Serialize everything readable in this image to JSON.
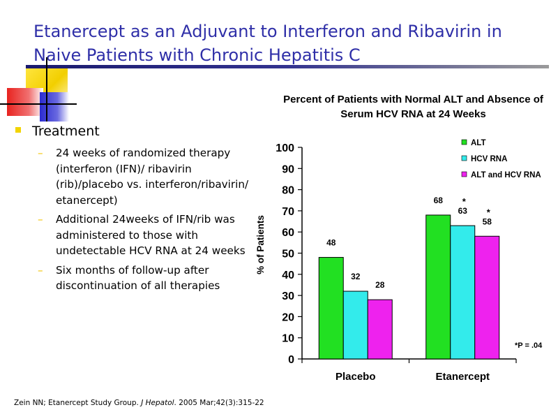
{
  "slide": {
    "title": "Etanercept as an Adjuvant to Interferon and Ribavirin in Naive Patients with Chronic Hepatitis C",
    "bullet_heading": "Treatment",
    "sub_bullets": [
      "24 weeks of randomized therapy (interferon (IFN)/ ribavirin (rib)/placebo vs. interferon/ribavirin/ etanercept)",
      "Additional 24weeks of IFN/rib was administered to those with undetectable HCV RNA at 24 weeks",
      "Six months of follow-up after discontinuation of all therapies"
    ],
    "citation_authors": "Zein NN; Etanercept Study Group. ",
    "citation_journal": "J Hepatol",
    "citation_rest": ". 2005 Mar;42(3):315-22",
    "colors": {
      "title": "#2f2fa8",
      "accent_yellow": "#f2d400",
      "accent_blue": "#2b2bd0",
      "accent_red": "#e8231f",
      "rule_navy": "#1a1a6e"
    }
  },
  "chart_data": {
    "type": "bar",
    "title": "Percent of Patients with Normal ALT and Absence of Serum HCV RNA at 24 Weeks",
    "categories": [
      "Placebo",
      "Etanercept"
    ],
    "series": [
      {
        "name": "ALT",
        "values": [
          48,
          68
        ],
        "color": "#22e022"
      },
      {
        "name": "HCV RNA",
        "values": [
          32,
          63
        ],
        "color": "#33ebeb"
      },
      {
        "name": "ALT and HCV RNA",
        "values": [
          28,
          58
        ],
        "color": "#ee22ee"
      }
    ],
    "significance_marks": [
      {
        "category": "Etanercept",
        "series": "HCV RNA",
        "mark": "*"
      },
      {
        "category": "Etanercept",
        "series": "ALT and HCV RNA",
        "mark": "*"
      }
    ],
    "ylabel": "% of Patients",
    "xlabel": "",
    "ylim": [
      0,
      100
    ],
    "yticks": [
      0,
      10,
      20,
      30,
      40,
      50,
      60,
      70,
      80,
      90,
      100
    ],
    "grid": false,
    "legend": "top-right",
    "footnote": "*P = .04"
  }
}
